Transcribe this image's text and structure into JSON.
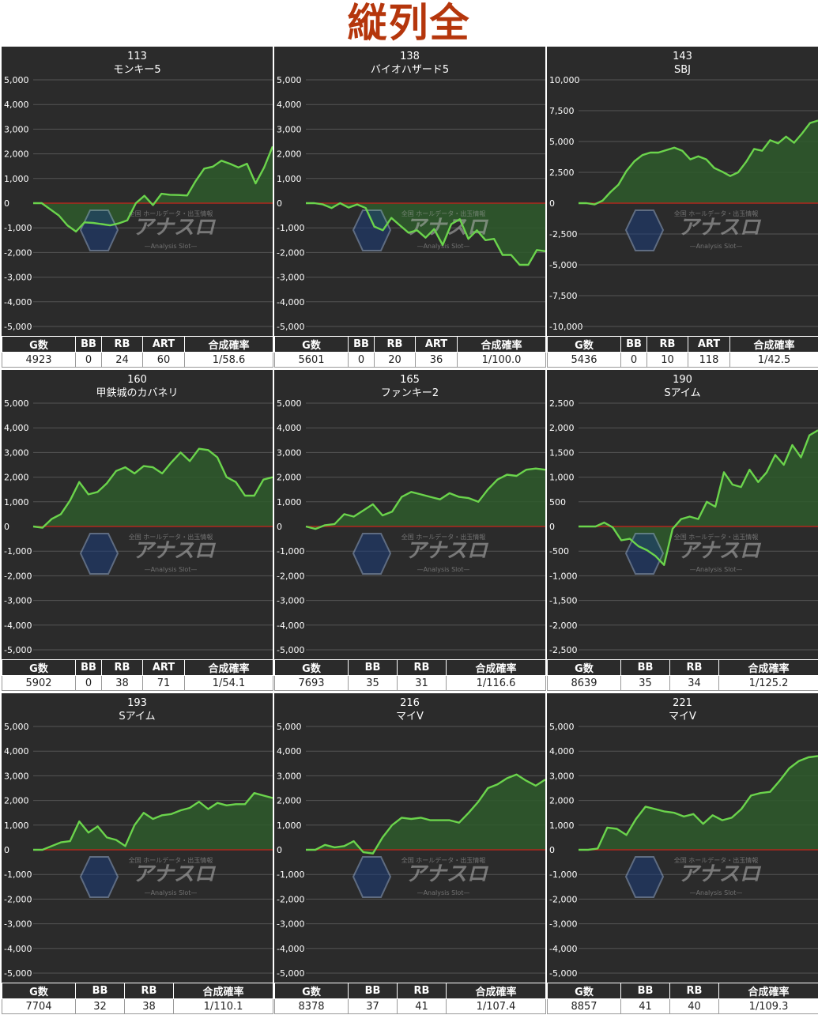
{
  "page_title": "縦列全",
  "colors": {
    "panel_bg": "#2b2b2b",
    "grid": "#555555",
    "zero_line": "#b0281e",
    "line": "#6bd44c",
    "fill": "#2e5a2c",
    "title_red": "#b5360c"
  },
  "watermark": {
    "icon": "anaslo-logo-icon",
    "brand": "アナスロ",
    "tagline": "全国 ホールデータ・出玉情報",
    "sub": "—Analysis Slot—"
  },
  "chart_data": [
    {
      "type": "area",
      "title": "113",
      "subtitle": "モンキー5",
      "ylim": [
        -5000,
        5000
      ],
      "yticks": [
        5000,
        4000,
        3000,
        2000,
        1000,
        0,
        -1000,
        -2000,
        -3000,
        -4000,
        -5000
      ],
      "tick_labels": [
        "5,000",
        "4,000",
        "3,000",
        "2,000",
        "1,000",
        "0",
        "-1,000",
        "-2,000",
        "-3,000",
        "-4,000",
        "-5,000"
      ],
      "values": [
        0,
        0,
        -250,
        -500,
        -900,
        -1150,
        -780,
        -800,
        -850,
        -900,
        -820,
        -700,
        0,
        300,
        -80,
        380,
        340,
        330,
        310,
        900,
        1400,
        1480,
        1720,
        1600,
        1450,
        1600,
        800,
        1450,
        2300
      ]
    },
    {
      "type": "area",
      "title": "138",
      "subtitle": "バイオハザード5",
      "ylim": [
        -5000,
        5000
      ],
      "yticks": [
        5000,
        4000,
        3000,
        2000,
        1000,
        0,
        -1000,
        -2000,
        -3000,
        -4000,
        -5000
      ],
      "tick_labels": [
        "5,000",
        "4,000",
        "3,000",
        "2,000",
        "1,000",
        "0",
        "-1,000",
        "-2,000",
        "-3,000",
        "-4,000",
        "-5,000"
      ],
      "values": [
        0,
        0,
        -50,
        -200,
        0,
        -180,
        -50,
        -200,
        -950,
        -1100,
        -600,
        -900,
        -1200,
        -1100,
        -1400,
        -1050,
        -1700,
        -850,
        -650,
        -1450,
        -1100,
        -1500,
        -1450,
        -2100,
        -2100,
        -2500,
        -2500,
        -1900,
        -1950
      ]
    },
    {
      "type": "area",
      "title": "143",
      "subtitle": "SBJ",
      "ylim": [
        -10000,
        10000
      ],
      "yticks": [
        10000,
        7500,
        5000,
        2500,
        0,
        -2500,
        -5000,
        -7500,
        -10000
      ],
      "tick_labels": [
        "10,000",
        "7,500",
        "5,000",
        "2,500",
        "0",
        "-2,500",
        "-5,000",
        "-7,500",
        "-10,000"
      ],
      "values": [
        0,
        0,
        -100,
        200,
        900,
        1500,
        2600,
        3400,
        3900,
        4100,
        4100,
        4300,
        4500,
        4250,
        3550,
        3800,
        3550,
        2850,
        2550,
        2200,
        2500,
        3350,
        4400,
        4250,
        5100,
        4850,
        5400,
        4900,
        5650,
        6500,
        6700
      ]
    },
    {
      "type": "area",
      "title": "160",
      "subtitle": "甲鉄城のカバネリ",
      "ylim": [
        -5000,
        5000
      ],
      "yticks": [
        5000,
        4000,
        3000,
        2000,
        1000,
        0,
        -1000,
        -2000,
        -3000,
        -4000,
        -5000
      ],
      "tick_labels": [
        "5,000",
        "4,000",
        "3,000",
        "2,000",
        "1,000",
        "0",
        "-1,000",
        "-2,000",
        "-3,000",
        "-4,000",
        "-5,000"
      ],
      "values": [
        0,
        -50,
        300,
        500,
        1050,
        1800,
        1300,
        1400,
        1750,
        2250,
        2400,
        2150,
        2450,
        2400,
        2150,
        2600,
        3000,
        2650,
        3150,
        3100,
        2800,
        2000,
        1800,
        1250,
        1250,
        1900,
        2000
      ]
    },
    {
      "type": "area",
      "title": "165",
      "subtitle": "ファンキー2",
      "ylim": [
        -5000,
        5000
      ],
      "yticks": [
        5000,
        4000,
        3000,
        2000,
        1000,
        0,
        -1000,
        -2000,
        -3000,
        -4000,
        -5000
      ],
      "tick_labels": [
        "5,000",
        "4,000",
        "3,000",
        "2,000",
        "1,000",
        "0",
        "-1,000",
        "-2,000",
        "-3,000",
        "-4,000",
        "-5,000"
      ],
      "values": [
        0,
        -100,
        50,
        100,
        500,
        400,
        650,
        900,
        450,
        600,
        1200,
        1400,
        1300,
        1200,
        1100,
        1350,
        1200,
        1150,
        1000,
        1500,
        1900,
        2100,
        2050,
        2300,
        2350,
        2300
      ]
    },
    {
      "type": "area",
      "title": "190",
      "subtitle": "Sアイム",
      "ylim": [
        -2500,
        2500
      ],
      "yticks": [
        2500,
        2000,
        1500,
        1000,
        500,
        0,
        -500,
        -1000,
        -1500,
        -2000,
        -2500
      ],
      "tick_labels": [
        "2,500",
        "2,000",
        "1,500",
        "1,000",
        "500",
        "0",
        "-500",
        "-1,000",
        "-1,500",
        "-2,000",
        "-2,500"
      ],
      "values": [
        0,
        0,
        0,
        80,
        -20,
        -280,
        -250,
        -400,
        -480,
        -600,
        -780,
        -50,
        150,
        200,
        150,
        500,
        400,
        1100,
        850,
        800,
        1150,
        900,
        1100,
        1450,
        1250,
        1650,
        1400,
        1850,
        1950
      ]
    },
    {
      "type": "area",
      "title": "193",
      "subtitle": "Sアイム",
      "ylim": [
        -5000,
        5000
      ],
      "yticks": [
        5000,
        4000,
        3000,
        2000,
        1000,
        0,
        -1000,
        -2000,
        -3000,
        -4000,
        -5000
      ],
      "tick_labels": [
        "5,000",
        "4,000",
        "3,000",
        "2,000",
        "1,000",
        "0",
        "-1,000",
        "-2,000",
        "-3,000",
        "-4,000",
        "-5,000"
      ],
      "values": [
        0,
        0,
        150,
        300,
        350,
        1150,
        700,
        950,
        500,
        400,
        150,
        1000,
        1500,
        1250,
        1400,
        1450,
        1600,
        1700,
        1950,
        1650,
        1900,
        1800,
        1850,
        1850,
        2300,
        2200,
        2100
      ]
    },
    {
      "type": "area",
      "title": "216",
      "subtitle": "マイV",
      "ylim": [
        -5000,
        5000
      ],
      "yticks": [
        5000,
        4000,
        3000,
        2000,
        1000,
        0,
        -1000,
        -2000,
        -3000,
        -4000,
        -5000
      ],
      "tick_labels": [
        "5,000",
        "4,000",
        "3,000",
        "2,000",
        "1,000",
        "0",
        "-1,000",
        "-2,000",
        "-3,000",
        "-4,000",
        "-5,000"
      ],
      "values": [
        0,
        0,
        200,
        100,
        150,
        350,
        -100,
        -150,
        500,
        1000,
        1300,
        1250,
        1300,
        1200,
        1200,
        1200,
        1100,
        1500,
        1950,
        2500,
        2650,
        2900,
        3050,
        2800,
        2600,
        2850
      ]
    },
    {
      "type": "area",
      "title": "221",
      "subtitle": "マイV",
      "ylim": [
        -5000,
        5000
      ],
      "yticks": [
        5000,
        4000,
        3000,
        2000,
        1000,
        0,
        -1000,
        -2000,
        -3000,
        -4000,
        -5000
      ],
      "tick_labels": [
        "5,000",
        "4,000",
        "3,000",
        "2,000",
        "1,000",
        "0",
        "-1,000",
        "-2,000",
        "-3,000",
        "-4,000",
        "-5,000"
      ],
      "values": [
        0,
        0,
        50,
        900,
        850,
        600,
        1250,
        1750,
        1650,
        1550,
        1500,
        1350,
        1450,
        1050,
        1400,
        1200,
        1300,
        1650,
        2200,
        2300,
        2350,
        2800,
        3300,
        3600,
        3750,
        3800
      ]
    }
  ],
  "stats": [
    {
      "headers": [
        "G数",
        "BB",
        "RB",
        "ART",
        "合成確率"
      ],
      "row": [
        "4923",
        "0",
        "24",
        "60",
        "1/58.6"
      ]
    },
    {
      "headers": [
        "G数",
        "BB",
        "RB",
        "ART",
        "合成確率"
      ],
      "row": [
        "5601",
        "0",
        "20",
        "36",
        "1/100.0"
      ]
    },
    {
      "headers": [
        "G数",
        "BB",
        "RB",
        "ART",
        "合成確率"
      ],
      "row": [
        "5436",
        "0",
        "10",
        "118",
        "1/42.5"
      ]
    },
    {
      "headers": [
        "G数",
        "BB",
        "RB",
        "ART",
        "合成確率"
      ],
      "row": [
        "5902",
        "0",
        "38",
        "71",
        "1/54.1"
      ]
    },
    {
      "headers": [
        "G数",
        "BB",
        "RB",
        "合成確率"
      ],
      "row": [
        "7693",
        "35",
        "31",
        "1/116.6"
      ]
    },
    {
      "headers": [
        "G数",
        "BB",
        "RB",
        "合成確率"
      ],
      "row": [
        "8639",
        "35",
        "34",
        "1/125.2"
      ]
    },
    {
      "headers": [
        "G数",
        "BB",
        "RB",
        "合成確率"
      ],
      "row": [
        "7704",
        "32",
        "38",
        "1/110.1"
      ]
    },
    {
      "headers": [
        "G数",
        "BB",
        "RB",
        "合成確率"
      ],
      "row": [
        "8378",
        "37",
        "41",
        "1/107.4"
      ]
    },
    {
      "headers": [
        "G数",
        "BB",
        "RB",
        "合成確率"
      ],
      "row": [
        "8857",
        "41",
        "40",
        "1/109.3"
      ]
    }
  ]
}
